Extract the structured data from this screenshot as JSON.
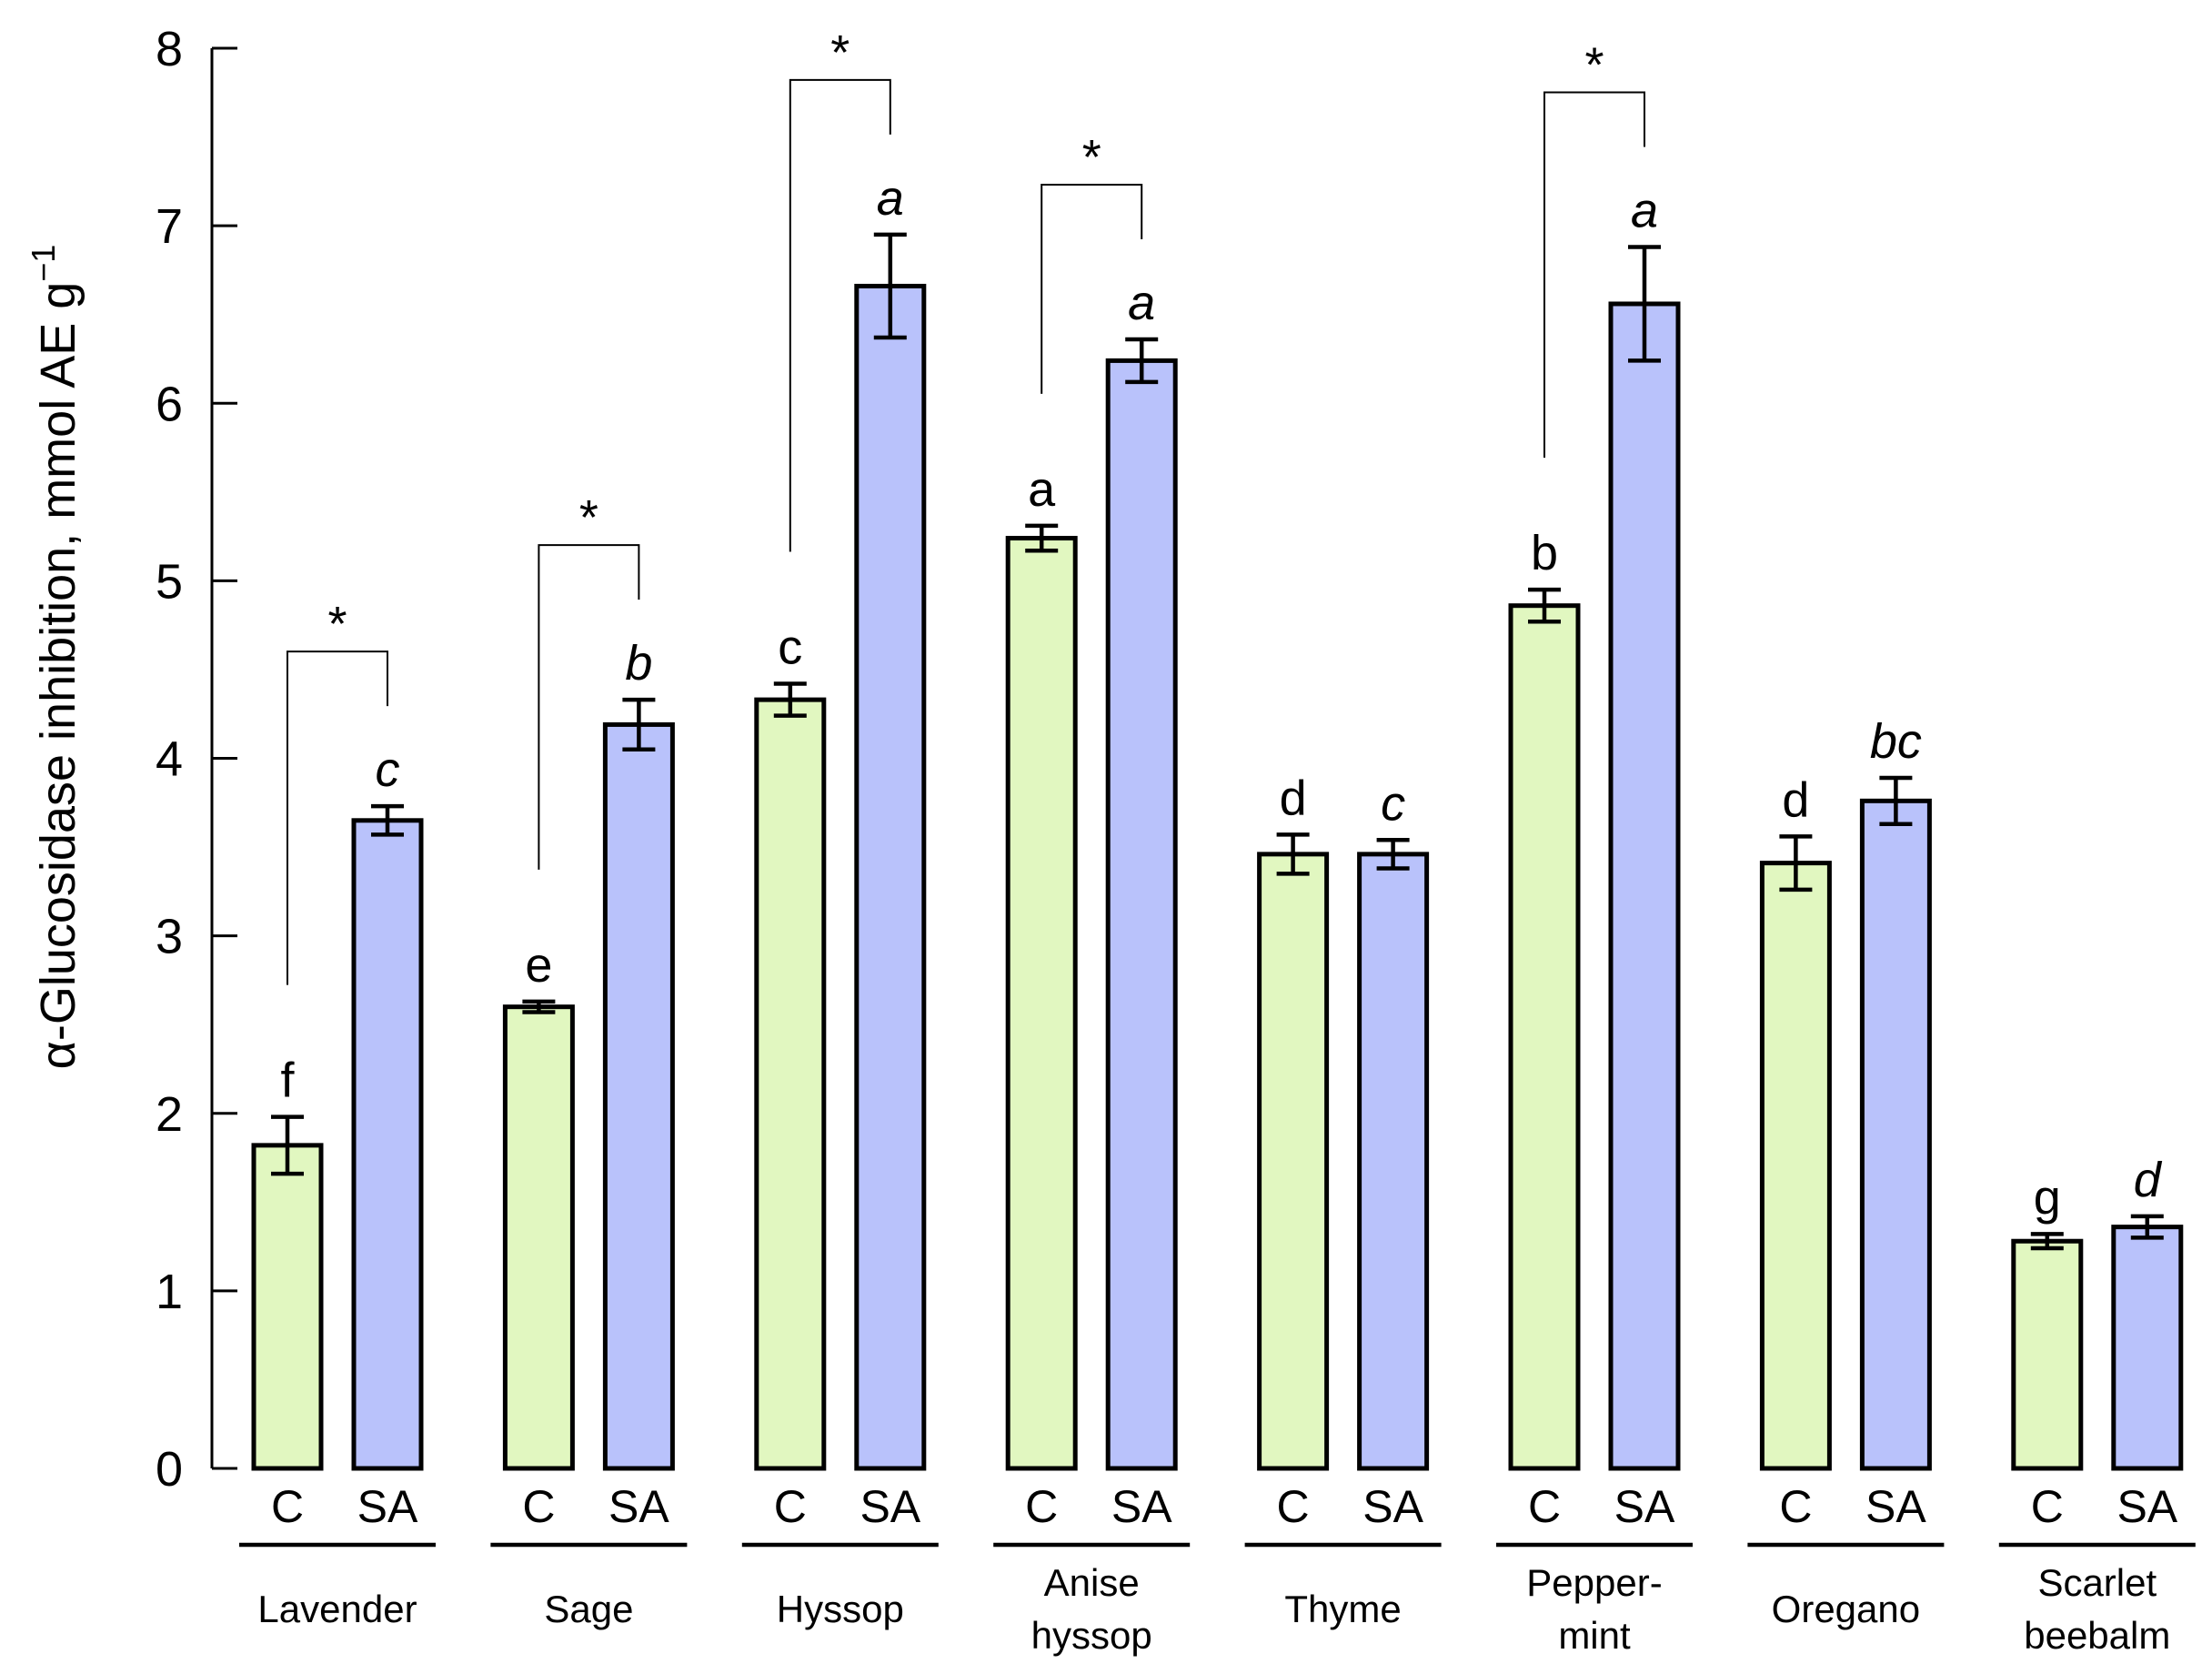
{
  "chart_data": {
    "type": "bar",
    "ylabel": "α-Glucosidase inhibition, mmol AE g",
    "ylabel_sup": "−1",
    "ylim": [
      0,
      8
    ],
    "yticks": [
      0,
      1,
      2,
      3,
      4,
      5,
      6,
      7,
      8
    ],
    "treatments": [
      "C",
      "SA"
    ],
    "colors": {
      "C": "#e1f7c0",
      "SA": "#b9c2fb"
    },
    "significance_marker": "*",
    "groups": [
      {
        "name": [
          "Lavender"
        ],
        "values": [
          1.82,
          3.65
        ],
        "errors": [
          0.16,
          0.08
        ],
        "letters": [
          "f",
          "c"
        ],
        "significant": true
      },
      {
        "name": [
          "Sage"
        ],
        "values": [
          2.6,
          4.19
        ],
        "errors": [
          0.03,
          0.14
        ],
        "letters": [
          "e",
          "b"
        ],
        "significant": true
      },
      {
        "name": [
          "Hyssop"
        ],
        "values": [
          4.33,
          6.66
        ],
        "errors": [
          0.09,
          0.29
        ],
        "letters": [
          "c",
          "a"
        ],
        "significant": true
      },
      {
        "name": [
          "Anise",
          "hyssop"
        ],
        "values": [
          5.24,
          6.24
        ],
        "errors": [
          0.07,
          0.12
        ],
        "letters": [
          "a",
          "a"
        ],
        "significant": true
      },
      {
        "name": [
          "Thyme"
        ],
        "values": [
          3.46,
          3.46
        ],
        "errors": [
          0.11,
          0.08
        ],
        "letters": [
          "d",
          "c"
        ],
        "significant": false
      },
      {
        "name": [
          "Pepper-",
          "mint"
        ],
        "values": [
          4.86,
          6.56
        ],
        "errors": [
          0.09,
          0.32
        ],
        "letters": [
          "b",
          "a"
        ],
        "significant": true
      },
      {
        "name": [
          "Oregano"
        ],
        "values": [
          3.41,
          3.76
        ],
        "errors": [
          0.15,
          0.13
        ],
        "letters": [
          "d",
          "bc"
        ],
        "significant": false
      },
      {
        "name": [
          "Scarlet",
          "beebalm"
        ],
        "values": [
          1.28,
          1.36
        ],
        "errors": [
          0.04,
          0.06
        ],
        "letters": [
          "g",
          "d"
        ],
        "significant": false
      }
    ]
  }
}
